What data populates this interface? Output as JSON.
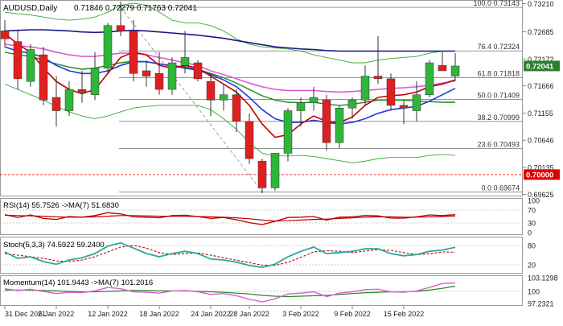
{
  "header": {
    "symbol": "AUDUSD,Daily",
    "ohlc": "0.71846 0.72279 0.71763 0.72041"
  },
  "colors": {
    "bull": "#2fb53a",
    "bear": "#e02020",
    "ma_red": "#c00000",
    "ma_blue": "#1f3cdc",
    "ma_green": "#1c8a1c",
    "ma_magenta": "#e05ad8",
    "ma_navy": "#1a1a8a",
    "bollinger": "#38a838",
    "fib": "#444444",
    "price_tag": "#2e7d2e",
    "red_tag": "#e00000",
    "osc_teal": "#2aa6a0"
  },
  "price_axis_labels": [
    "0.73210",
    "0.72685",
    "0.72172",
    "0.71666",
    "0.71155",
    "0.70646",
    "0.70135",
    "0.69625"
  ],
  "price_tags": {
    "current": "0.72041",
    "level": "0.70000"
  },
  "fib_levels": [
    {
      "label": "100.0 0.73143",
      "value": 0.73143
    },
    {
      "label": "76.4 0.72324",
      "value": 0.72324
    },
    {
      "label": "61.8 0.71818",
      "value": 0.71818
    },
    {
      "label": "50.0 0.71409",
      "value": 0.71409
    },
    {
      "label": "38.2 0.70999",
      "value": 0.70999
    },
    {
      "label": "23.6 0.70493",
      "value": 0.70493
    },
    {
      "label": "0.0 0.69674",
      "value": 0.69674
    }
  ],
  "panels": {
    "rsi": {
      "label": "RSI(14) 55.7526 ->MA(7) 51.6830",
      "ticks": [
        "100",
        "70",
        "30",
        "0"
      ]
    },
    "stoch": {
      "label": "Stoch(5,3,3) 74.5922 59.2400",
      "ticks": [
        "80",
        "20"
      ]
    },
    "momentum": {
      "label": "Momentum(14) 101.9443 ->MA(7) 101.2016",
      "ticks": [
        "103.1298",
        "100",
        "97.2321"
      ]
    }
  },
  "x_axis_labels": [
    "31 Dec 2021",
    "6 Jan 2022",
    "12 Jan 2022",
    "18 Jan 2022",
    "24 Jan 2022",
    "28 Jan 2022",
    "3 Feb 2022",
    "9 Feb 2022",
    "15 Feb 2022"
  ],
  "chart_data": {
    "type": "candlestick",
    "title": "AUDUSD,Daily",
    "ylim": [
      0.6962,
      0.7325
    ],
    "candles": [
      {
        "o": 0.727,
        "h": 0.729,
        "l": 0.724,
        "c": 0.7255
      },
      {
        "o": 0.725,
        "h": 0.727,
        "l": 0.716,
        "c": 0.718
      },
      {
        "o": 0.7175,
        "h": 0.7245,
        "l": 0.7165,
        "c": 0.7235
      },
      {
        "o": 0.7225,
        "h": 0.724,
        "l": 0.713,
        "c": 0.714
      },
      {
        "o": 0.7145,
        "h": 0.7185,
        "l": 0.709,
        "c": 0.712
      },
      {
        "o": 0.712,
        "h": 0.7175,
        "l": 0.711,
        "c": 0.716
      },
      {
        "o": 0.716,
        "h": 0.7195,
        "l": 0.7135,
        "c": 0.7155
      },
      {
        "o": 0.715,
        "h": 0.723,
        "l": 0.714,
        "c": 0.72
      },
      {
        "o": 0.72,
        "h": 0.7285,
        "l": 0.719,
        "c": 0.728
      },
      {
        "o": 0.728,
        "h": 0.7325,
        "l": 0.726,
        "c": 0.727
      },
      {
        "o": 0.727,
        "h": 0.729,
        "l": 0.7175,
        "c": 0.719
      },
      {
        "o": 0.7195,
        "h": 0.7215,
        "l": 0.7165,
        "c": 0.7185
      },
      {
        "o": 0.719,
        "h": 0.723,
        "l": 0.715,
        "c": 0.716
      },
      {
        "o": 0.716,
        "h": 0.722,
        "l": 0.715,
        "c": 0.721
      },
      {
        "o": 0.7205,
        "h": 0.727,
        "l": 0.719,
        "c": 0.722
      },
      {
        "o": 0.721,
        "h": 0.7215,
        "l": 0.7175,
        "c": 0.718
      },
      {
        "o": 0.7175,
        "h": 0.719,
        "l": 0.711,
        "c": 0.714
      },
      {
        "o": 0.714,
        "h": 0.717,
        "l": 0.712,
        "c": 0.715
      },
      {
        "o": 0.715,
        "h": 0.716,
        "l": 0.708,
        "c": 0.71
      },
      {
        "o": 0.71,
        "h": 0.7115,
        "l": 0.702,
        "c": 0.703
      },
      {
        "o": 0.7025,
        "h": 0.703,
        "l": 0.6965,
        "c": 0.6975
      },
      {
        "o": 0.6975,
        "h": 0.704,
        "l": 0.697,
        "c": 0.704
      },
      {
        "o": 0.704,
        "h": 0.7125,
        "l": 0.7025,
        "c": 0.712
      },
      {
        "o": 0.712,
        "h": 0.7145,
        "l": 0.709,
        "c": 0.7135
      },
      {
        "o": 0.7135,
        "h": 0.7165,
        "l": 0.712,
        "c": 0.7145
      },
      {
        "o": 0.714,
        "h": 0.715,
        "l": 0.7045,
        "c": 0.706
      },
      {
        "o": 0.706,
        "h": 0.713,
        "l": 0.705,
        "c": 0.7125
      },
      {
        "o": 0.7125,
        "h": 0.7145,
        "l": 0.7105,
        "c": 0.714
      },
      {
        "o": 0.714,
        "h": 0.7205,
        "l": 0.713,
        "c": 0.7185
      },
      {
        "o": 0.7185,
        "h": 0.726,
        "l": 0.717,
        "c": 0.718
      },
      {
        "o": 0.718,
        "h": 0.719,
        "l": 0.712,
        "c": 0.713
      },
      {
        "o": 0.713,
        "h": 0.714,
        "l": 0.7095,
        "c": 0.7125
      },
      {
        "o": 0.712,
        "h": 0.7175,
        "l": 0.71,
        "c": 0.715
      },
      {
        "o": 0.715,
        "h": 0.7215,
        "l": 0.7145,
        "c": 0.721
      },
      {
        "o": 0.7205,
        "h": 0.723,
        "l": 0.7195,
        "c": 0.7195
      },
      {
        "o": 0.7185,
        "h": 0.7228,
        "l": 0.7176,
        "c": 0.7204
      }
    ],
    "ma_blue": [
      0.724,
      0.7232,
      0.7228,
      0.722,
      0.7205,
      0.7195,
      0.719,
      0.719,
      0.7195,
      0.7205,
      0.7212,
      0.7212,
      0.7208,
      0.7204,
      0.72,
      0.7196,
      0.7188,
      0.7178,
      0.7165,
      0.7145,
      0.7122,
      0.7105,
      0.7098,
      0.7098,
      0.7102,
      0.7098,
      0.7095,
      0.7098,
      0.7105,
      0.7115,
      0.7122,
      0.7125,
      0.7128,
      0.7138,
      0.715,
      0.7162
    ],
    "ma_red": [
      0.7265,
      0.7245,
      0.723,
      0.72,
      0.7175,
      0.716,
      0.7152,
      0.716,
      0.719,
      0.722,
      0.723,
      0.7225,
      0.7205,
      0.72,
      0.7205,
      0.72,
      0.7185,
      0.717,
      0.7155,
      0.713,
      0.7095,
      0.707,
      0.7075,
      0.7095,
      0.711,
      0.71,
      0.7098,
      0.7108,
      0.713,
      0.7145,
      0.7148,
      0.715,
      0.7155,
      0.7165,
      0.717,
      0.7178
    ],
    "ma_green": [
      0.723,
      0.7225,
      0.7222,
      0.7215,
      0.7208,
      0.7202,
      0.7198,
      0.72,
      0.7205,
      0.721,
      0.7213,
      0.7212,
      0.7208,
      0.7205,
      0.7202,
      0.7198,
      0.719,
      0.7182,
      0.7172,
      0.716,
      0.7148,
      0.714,
      0.7136,
      0.7135,
      0.7136,
      0.7132,
      0.713,
      0.7132,
      0.7136,
      0.714,
      0.714,
      0.714,
      0.7138,
      0.7137,
      0.7136,
      0.7136
    ],
    "ma_magenta": [
      0.7245,
      0.7242,
      0.724,
      0.7236,
      0.723,
      0.7225,
      0.7222,
      0.7222,
      0.7225,
      0.7228,
      0.7228,
      0.7225,
      0.722,
      0.7215,
      0.721,
      0.7205,
      0.7195,
      0.7188,
      0.718,
      0.7172,
      0.7165,
      0.716,
      0.7158,
      0.7158,
      0.7158,
      0.7156,
      0.7155,
      0.7156,
      0.7158,
      0.716,
      0.7162,
      0.7163,
      0.7165,
      0.7168,
      0.7172,
      0.7176
    ],
    "ma_navy": [
      0.727,
      0.7271,
      0.7272,
      0.7272,
      0.7271,
      0.727,
      0.7268,
      0.7267,
      0.7268,
      0.727,
      0.7271,
      0.727,
      0.7268,
      0.7266,
      0.7264,
      0.7262,
      0.7259,
      0.7256,
      0.7252,
      0.7248,
      0.7244,
      0.724,
      0.7238,
      0.7236,
      0.7235,
      0.7233,
      0.7232,
      0.7232,
      0.7232,
      0.7232,
      0.7232,
      0.7232,
      0.7232,
      0.7232,
      0.7232,
      0.7232
    ],
    "bb_upper": [
      0.7305,
      0.7302,
      0.73,
      0.7296,
      0.7292,
      0.729,
      0.7292,
      0.7296,
      0.7305,
      0.7318,
      0.7322,
      0.7318,
      0.7305,
      0.729,
      0.7285,
      0.7285,
      0.728,
      0.727,
      0.7255,
      0.7245,
      0.724,
      0.7238,
      0.7236,
      0.7232,
      0.7225,
      0.722,
      0.7215,
      0.721,
      0.721,
      0.7215,
      0.7218,
      0.722,
      0.7222,
      0.7228,
      0.7232,
      0.7232
    ],
    "bb_lower": [
      0.717,
      0.716,
      0.715,
      0.714,
      0.7128,
      0.7118,
      0.711,
      0.7105,
      0.711,
      0.7118,
      0.7125,
      0.7128,
      0.713,
      0.713,
      0.713,
      0.713,
      0.7122,
      0.7105,
      0.7085,
      0.706,
      0.704,
      0.7035,
      0.7035,
      0.7036,
      0.7034,
      0.703,
      0.7026,
      0.7022,
      0.7025,
      0.703,
      0.7032,
      0.7032,
      0.7032,
      0.7036,
      0.7038,
      0.7036
    ],
    "rsi": [
      56,
      47,
      55,
      44,
      41,
      50,
      48,
      53,
      62,
      58,
      49,
      48,
      46,
      53,
      54,
      50,
      44,
      47,
      40,
      31,
      25,
      35,
      47,
      48,
      50,
      39,
      48,
      49,
      53,
      52,
      45,
      45,
      49,
      55,
      53,
      55.75
    ],
    "rsi_ma": [
      54,
      53,
      52,
      51,
      49,
      48,
      48,
      49,
      51,
      53,
      53,
      52,
      51,
      51,
      51,
      50,
      49,
      48,
      46,
      43,
      39,
      36,
      37,
      39,
      41,
      42,
      44,
      46,
      48,
      49,
      49,
      48,
      48,
      49,
      50,
      51.68
    ],
    "stoch_k": [
      60,
      40,
      45,
      30,
      22,
      35,
      42,
      55,
      78,
      88,
      72,
      55,
      45,
      55,
      62,
      55,
      38,
      35,
      28,
      18,
      12,
      22,
      45,
      62,
      75,
      55,
      58,
      62,
      70,
      70,
      55,
      48,
      52,
      62,
      66,
      74.59
    ],
    "stoch_d": [
      55,
      50,
      45,
      40,
      32,
      30,
      35,
      45,
      60,
      75,
      80,
      72,
      58,
      52,
      55,
      57,
      50,
      42,
      34,
      27,
      19,
      18,
      28,
      43,
      60,
      64,
      62,
      58,
      63,
      67,
      65,
      58,
      52,
      54,
      60,
      59.24
    ],
    "momentum": [
      100.6,
      100.2,
      100.5,
      100.0,
      99.5,
      99.8,
      99.7,
      100.1,
      100.9,
      100.6,
      99.9,
      99.8,
      99.6,
      100.1,
      100.2,
      99.9,
      99.3,
      99.5,
      99.0,
      98.2,
      97.6,
      98.3,
      99.4,
      99.6,
      99.9,
      98.8,
      99.6,
      99.9,
      100.4,
      100.5,
      99.9,
      99.8,
      100.1,
      100.9,
      101.8,
      101.94
    ],
    "momentum_ma": [
      100.3,
      100.3,
      100.3,
      100.2,
      100.1,
      100.0,
      99.9,
      99.9,
      100.0,
      100.1,
      100.2,
      100.2,
      100.1,
      100.1,
      100.1,
      100.0,
      99.9,
      99.8,
      99.6,
      99.4,
      99.1,
      98.9,
      98.8,
      98.9,
      99.0,
      99.1,
      99.3,
      99.5,
      99.7,
      99.8,
      99.9,
      99.9,
      100.0,
      100.3,
      100.7,
      101.2
    ]
  }
}
